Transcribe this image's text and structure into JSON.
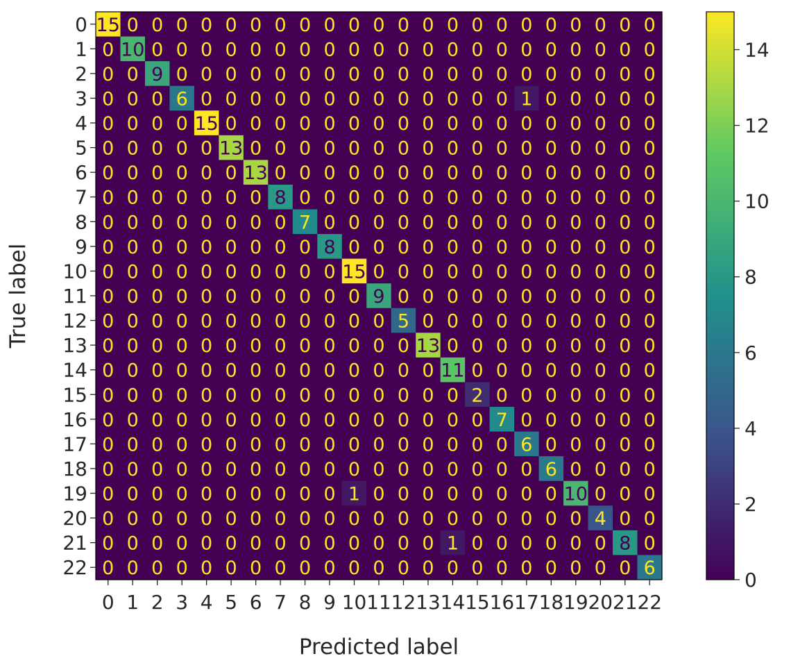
{
  "chart_data": {
    "type": "heatmap",
    "xlabel": "Predicted label",
    "ylabel": "True label",
    "x_ticks": [
      "0",
      "1",
      "2",
      "3",
      "4",
      "5",
      "6",
      "7",
      "8",
      "9",
      "10",
      "11",
      "12",
      "13",
      "14",
      "15",
      "16",
      "17",
      "18",
      "19",
      "20",
      "21",
      "22"
    ],
    "y_ticks": [
      "0",
      "1",
      "2",
      "3",
      "4",
      "5",
      "6",
      "7",
      "8",
      "9",
      "10",
      "11",
      "12",
      "13",
      "14",
      "15",
      "16",
      "17",
      "18",
      "19",
      "20",
      "21",
      "22"
    ],
    "colormap": "viridis",
    "vmin": 0,
    "vmax": 15,
    "colorbar_ticks": [
      0,
      2,
      4,
      6,
      8,
      10,
      12,
      14
    ],
    "text_color_light": "#fde725",
    "text_color_dark": "#440154",
    "matrix": [
      [
        15,
        0,
        0,
        0,
        0,
        0,
        0,
        0,
        0,
        0,
        0,
        0,
        0,
        0,
        0,
        0,
        0,
        0,
        0,
        0,
        0,
        0,
        0
      ],
      [
        0,
        10,
        0,
        0,
        0,
        0,
        0,
        0,
        0,
        0,
        0,
        0,
        0,
        0,
        0,
        0,
        0,
        0,
        0,
        0,
        0,
        0,
        0
      ],
      [
        0,
        0,
        9,
        0,
        0,
        0,
        0,
        0,
        0,
        0,
        0,
        0,
        0,
        0,
        0,
        0,
        0,
        0,
        0,
        0,
        0,
        0,
        0
      ],
      [
        0,
        0,
        0,
        6,
        0,
        0,
        0,
        0,
        0,
        0,
        0,
        0,
        0,
        0,
        0,
        0,
        0,
        1,
        0,
        0,
        0,
        0,
        0
      ],
      [
        0,
        0,
        0,
        0,
        15,
        0,
        0,
        0,
        0,
        0,
        0,
        0,
        0,
        0,
        0,
        0,
        0,
        0,
        0,
        0,
        0,
        0,
        0
      ],
      [
        0,
        0,
        0,
        0,
        0,
        13,
        0,
        0,
        0,
        0,
        0,
        0,
        0,
        0,
        0,
        0,
        0,
        0,
        0,
        0,
        0,
        0,
        0
      ],
      [
        0,
        0,
        0,
        0,
        0,
        0,
        13,
        0,
        0,
        0,
        0,
        0,
        0,
        0,
        0,
        0,
        0,
        0,
        0,
        0,
        0,
        0,
        0
      ],
      [
        0,
        0,
        0,
        0,
        0,
        0,
        0,
        8,
        0,
        0,
        0,
        0,
        0,
        0,
        0,
        0,
        0,
        0,
        0,
        0,
        0,
        0,
        0
      ],
      [
        0,
        0,
        0,
        0,
        0,
        0,
        0,
        0,
        7,
        0,
        0,
        0,
        0,
        0,
        0,
        0,
        0,
        0,
        0,
        0,
        0,
        0,
        0
      ],
      [
        0,
        0,
        0,
        0,
        0,
        0,
        0,
        0,
        0,
        8,
        0,
        0,
        0,
        0,
        0,
        0,
        0,
        0,
        0,
        0,
        0,
        0,
        0
      ],
      [
        0,
        0,
        0,
        0,
        0,
        0,
        0,
        0,
        0,
        0,
        15,
        0,
        0,
        0,
        0,
        0,
        0,
        0,
        0,
        0,
        0,
        0,
        0
      ],
      [
        0,
        0,
        0,
        0,
        0,
        0,
        0,
        0,
        0,
        0,
        0,
        9,
        0,
        0,
        0,
        0,
        0,
        0,
        0,
        0,
        0,
        0,
        0
      ],
      [
        0,
        0,
        0,
        0,
        0,
        0,
        0,
        0,
        0,
        0,
        0,
        0,
        5,
        0,
        0,
        0,
        0,
        0,
        0,
        0,
        0,
        0,
        0
      ],
      [
        0,
        0,
        0,
        0,
        0,
        0,
        0,
        0,
        0,
        0,
        0,
        0,
        0,
        13,
        0,
        0,
        0,
        0,
        0,
        0,
        0,
        0,
        0
      ],
      [
        0,
        0,
        0,
        0,
        0,
        0,
        0,
        0,
        0,
        0,
        0,
        0,
        0,
        0,
        11,
        0,
        0,
        0,
        0,
        0,
        0,
        0,
        0
      ],
      [
        0,
        0,
        0,
        0,
        0,
        0,
        0,
        0,
        0,
        0,
        0,
        0,
        0,
        0,
        0,
        2,
        0,
        0,
        0,
        0,
        0,
        0,
        0
      ],
      [
        0,
        0,
        0,
        0,
        0,
        0,
        0,
        0,
        0,
        0,
        0,
        0,
        0,
        0,
        0,
        0,
        7,
        0,
        0,
        0,
        0,
        0,
        0
      ],
      [
        0,
        0,
        0,
        0,
        0,
        0,
        0,
        0,
        0,
        0,
        0,
        0,
        0,
        0,
        0,
        0,
        0,
        6,
        0,
        0,
        0,
        0,
        0
      ],
      [
        0,
        0,
        0,
        0,
        0,
        0,
        0,
        0,
        0,
        0,
        0,
        0,
        0,
        0,
        0,
        0,
        0,
        0,
        6,
        0,
        0,
        0,
        0
      ],
      [
        0,
        0,
        0,
        0,
        0,
        0,
        0,
        0,
        0,
        0,
        1,
        0,
        0,
        0,
        0,
        0,
        0,
        0,
        0,
        10,
        0,
        0,
        0
      ],
      [
        0,
        0,
        0,
        0,
        0,
        0,
        0,
        0,
        0,
        0,
        0,
        0,
        0,
        0,
        0,
        0,
        0,
        0,
        0,
        0,
        4,
        0,
        0
      ],
      [
        0,
        0,
        0,
        0,
        0,
        0,
        0,
        0,
        0,
        0,
        0,
        0,
        0,
        0,
        1,
        0,
        0,
        0,
        0,
        0,
        0,
        8,
        0
      ],
      [
        0,
        0,
        0,
        0,
        0,
        0,
        0,
        0,
        0,
        0,
        0,
        0,
        0,
        0,
        0,
        0,
        0,
        0,
        0,
        0,
        0,
        0,
        6
      ]
    ]
  }
}
